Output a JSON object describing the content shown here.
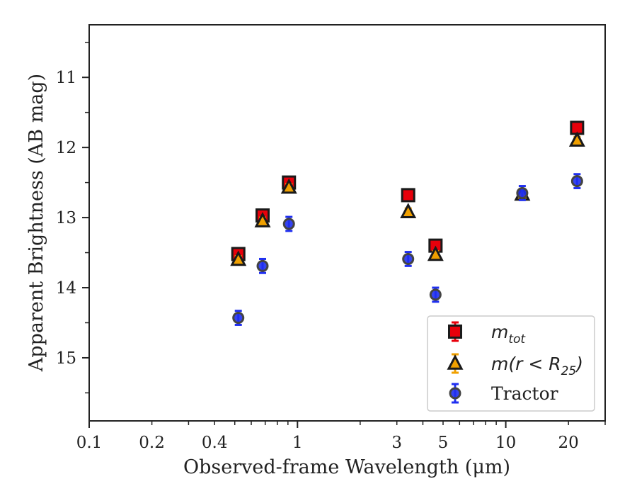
{
  "chart_data": {
    "type": "scatter",
    "title": "",
    "xlabel": "Observed-frame Wavelength (μm)",
    "ylabel": "Apparent Brightness (AB mag)",
    "xscale": "log",
    "xlim": [
      0.1,
      30
    ],
    "ylim": [
      15.9,
      10.25
    ],
    "y_inverted": true,
    "xticks": [
      {
        "value": 0.1,
        "label": "0.1"
      },
      {
        "value": 0.2,
        "label": "0.2"
      },
      {
        "value": 0.4,
        "label": "0.4"
      },
      {
        "value": 1,
        "label": "1"
      },
      {
        "value": 3,
        "label": "3"
      },
      {
        "value": 5,
        "label": "5"
      },
      {
        "value": 10,
        "label": "10"
      },
      {
        "value": 20,
        "label": "20"
      }
    ],
    "yticks": [
      {
        "value": 11,
        "label": "11"
      },
      {
        "value": 12,
        "label": "12"
      },
      {
        "value": 13,
        "label": "13"
      },
      {
        "value": 14,
        "label": "14"
      },
      {
        "value": 15,
        "label": "15"
      }
    ],
    "grid": false,
    "legend_position": "lower-right",
    "series": [
      {
        "name": "m_tot",
        "legend_main": "m",
        "legend_sub": "tot",
        "marker": "square",
        "fill": "#e8000b",
        "edge": "#1a1a1a",
        "error_color": "#e8000b",
        "points": [
          {
            "x": 0.52,
            "y": 13.52,
            "err": 0.07
          },
          {
            "x": 0.68,
            "y": 12.97,
            "err": 0.07
          },
          {
            "x": 0.91,
            "y": 12.5,
            "err": 0.07
          },
          {
            "x": 3.4,
            "y": 12.68,
            "err": 0.07
          },
          {
            "x": 4.6,
            "y": 13.4,
            "err": 0.07
          },
          {
            "x": 22.0,
            "y": 11.72,
            "err": 0.07
          }
        ]
      },
      {
        "name": "m(r<R_25)",
        "legend_main": "m(r < R",
        "legend_sub": "25",
        "legend_tail": ")",
        "marker": "triangle",
        "fill": "#f0a000",
        "edge": "#1a1a1a",
        "error_color": "#f0a000",
        "points": [
          {
            "x": 0.52,
            "y": 13.6,
            "err": 0.05
          },
          {
            "x": 0.68,
            "y": 13.05,
            "err": 0.05
          },
          {
            "x": 0.91,
            "y": 12.57,
            "err": 0.05
          },
          {
            "x": 3.4,
            "y": 12.92,
            "err": 0.05
          },
          {
            "x": 4.6,
            "y": 13.53,
            "err": 0.05
          },
          {
            "x": 12.0,
            "y": 12.67,
            "err": 0.05
          },
          {
            "x": 22.0,
            "y": 11.9,
            "err": 0.05
          }
        ]
      },
      {
        "name": "Tractor",
        "legend_main": "Tractor",
        "marker": "circle",
        "fill": "#1f2ff0",
        "edge": "#444444",
        "error_color": "#1f2ff0",
        "points": [
          {
            "x": 0.52,
            "y": 14.43,
            "err": 0.1
          },
          {
            "x": 0.68,
            "y": 13.69,
            "err": 0.1
          },
          {
            "x": 0.91,
            "y": 13.09,
            "err": 0.1
          },
          {
            "x": 3.4,
            "y": 13.59,
            "err": 0.1
          },
          {
            "x": 4.6,
            "y": 14.1,
            "err": 0.1
          },
          {
            "x": 12.0,
            "y": 12.65,
            "err": 0.1
          },
          {
            "x": 22.0,
            "y": 12.48,
            "err": 0.1
          }
        ]
      }
    ]
  }
}
